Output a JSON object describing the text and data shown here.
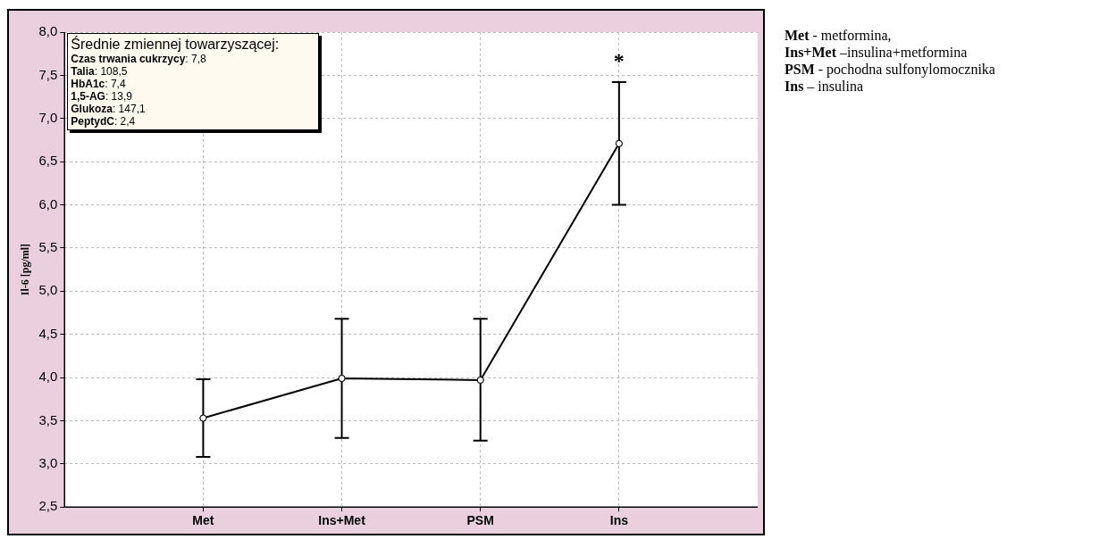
{
  "chart_data": {
    "type": "line",
    "ylabel": "Il-6 [pg/ml]",
    "categories": [
      "Met",
      "Ins+Met",
      "PSM",
      "Ins"
    ],
    "values": [
      3.53,
      3.99,
      3.97,
      6.71
    ],
    "errors": [
      [
        3.08,
        3.98
      ],
      [
        3.3,
        4.68
      ],
      [
        3.27,
        4.68
      ],
      [
        6.0,
        7.42
      ]
    ],
    "color": "#000000",
    "marker": "circle",
    "line_style": "solid",
    "grid": true,
    "legend": false,
    "ylim": [
      2.5,
      8.0
    ],
    "yticks": [
      {
        "value": 2.5,
        "label": "2,5"
      },
      {
        "value": 3.0,
        "label": "3,0"
      },
      {
        "value": 3.5,
        "label": "3,5"
      },
      {
        "value": 4.0,
        "label": "4,0"
      },
      {
        "value": 4.5,
        "label": "4,5"
      },
      {
        "value": 5.0,
        "label": "5,0"
      },
      {
        "value": 5.5,
        "label": "5,5"
      },
      {
        "value": 6.0,
        "label": "6,0"
      },
      {
        "value": 6.5,
        "label": "6,5"
      },
      {
        "value": 7.0,
        "label": "7,0"
      },
      {
        "value": 7.5,
        "label": "7,5"
      },
      {
        "value": 8.0,
        "label": "8,0"
      }
    ],
    "annotations": [
      "*",
      "Średnie zmiennej towarzyszącej:",
      "Czas trwania cukrzycy: 7,8",
      "Talia: 108,5",
      "HbA1c: 7,4",
      "1,5-AG: 13,9",
      "Glukoza: 147,1",
      "PeptydC: 2,4",
      "Met - metformina,",
      "Ins+Met –insulina+metformina",
      "PSM - pochodna sulfonylomocznika",
      "Ins – insulina"
    ]
  }
}
